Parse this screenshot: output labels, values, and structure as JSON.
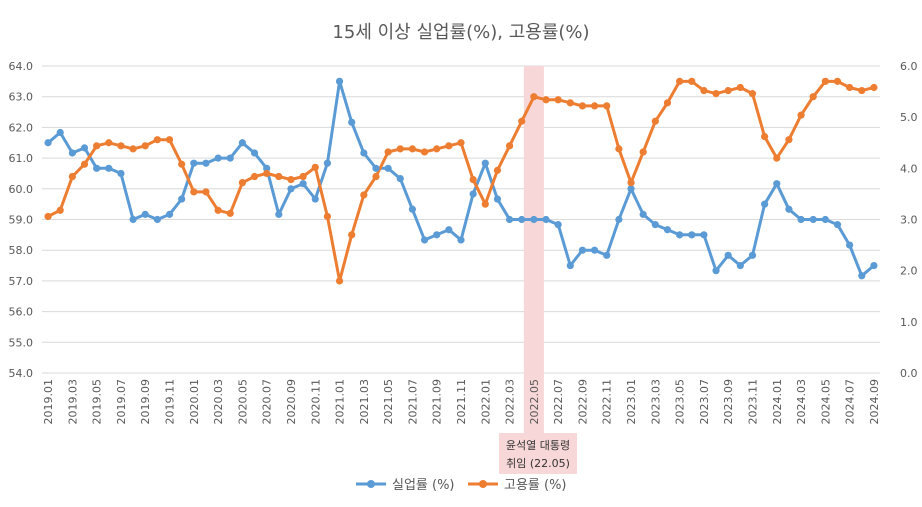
{
  "chart_data": {
    "type": "line",
    "title": "15세 이상 실업률(%), 고용률(%)",
    "categories": [
      "2019.01",
      "2019.02",
      "2019.03",
      "2019.04",
      "2019.05",
      "2019.06",
      "2019.07",
      "2019.08",
      "2019.09",
      "2019.10",
      "2019.11",
      "2019.12",
      "2020.01",
      "2020.02",
      "2020.03",
      "2020.04",
      "2020.05",
      "2020.06",
      "2020.07",
      "2020.08",
      "2020.09",
      "2020.10",
      "2020.11",
      "2020.12",
      "2021.01",
      "2021.02",
      "2021.03",
      "2021.04",
      "2021.05",
      "2021.06",
      "2021.07",
      "2021.08",
      "2021.09",
      "2021.10",
      "2021.11",
      "2021.12",
      "2022.01",
      "2022.02",
      "2022.03",
      "2022.04",
      "2022.05",
      "2022.06",
      "2022.07",
      "2022.08",
      "2022.09",
      "2022.10",
      "2022.11",
      "2022.12",
      "2023.01",
      "2023.02",
      "2023.03",
      "2023.04",
      "2023.05",
      "2023.06",
      "2023.07",
      "2023.08",
      "2023.09",
      "2023.10",
      "2023.11",
      "2023.12",
      "2024.01",
      "2024.02",
      "2024.03",
      "2024.04",
      "2024.05",
      "2024.06",
      "2024.07",
      "2024.08",
      "2024.09"
    ],
    "x_tick_labels": [
      "2019.01",
      "2019.03",
      "2019.05",
      "2019.07",
      "2019.09",
      "2019.11",
      "2020.01",
      "2020.03",
      "2020.05",
      "2020.07",
      "2020.09",
      "2020.11",
      "2021.01",
      "2021.03",
      "2021.05",
      "2021.07",
      "2021.09",
      "2021.11",
      "2022.01",
      "2022.03",
      "2022.05",
      "2022.07",
      "2022.09",
      "2022.11",
      "2023.01",
      "2023.03",
      "2023.05",
      "2023.07",
      "2023.09",
      "2023.11",
      "2024.01",
      "2024.03",
      "2024.05",
      "2024.07",
      "2024.09"
    ],
    "y_left_ticks": [
      "64.0",
      "63.0",
      "62.0",
      "61.0",
      "60.0",
      "59.0",
      "58.0",
      "57.0",
      "56.0",
      "55.0",
      "54.0"
    ],
    "y_right_ticks": [
      "6.0",
      "5.0",
      "4.0",
      "3.0",
      "2.0",
      "1.0",
      "0.0"
    ],
    "ylim_left": [
      54,
      64
    ],
    "ylim_right": [
      0,
      6
    ],
    "series": [
      {
        "name": "실업률 (%)",
        "axis": "right",
        "color": "#5b9bd5",
        "values": [
          4.5,
          4.7,
          4.3,
          4.4,
          4.0,
          4.0,
          3.9,
          3.0,
          3.1,
          3.0,
          3.1,
          3.4,
          4.1,
          4.1,
          4.2,
          4.2,
          4.5,
          4.3,
          4.0,
          3.1,
          3.6,
          3.7,
          3.4,
          4.1,
          5.7,
          4.9,
          4.3,
          4.0,
          4.0,
          3.8,
          3.2,
          2.6,
          2.7,
          2.8,
          2.6,
          3.5,
          4.1,
          3.4,
          3.0,
          3.0,
          3.0,
          3.0,
          2.9,
          2.1,
          2.4,
          2.4,
          2.3,
          3.0,
          3.6,
          3.1,
          2.9,
          2.8,
          2.7,
          2.7,
          2.7,
          2.0,
          2.3,
          2.1,
          2.3,
          3.3,
          3.7,
          3.2,
          3.0,
          3.0,
          3.0,
          2.9,
          2.5,
          1.9,
          2.1
        ]
      },
      {
        "name": "고용률 (%)",
        "axis": "left",
        "color": "#ed7d31",
        "values": [
          59.1,
          59.3,
          60.4,
          60.8,
          61.4,
          61.5,
          61.4,
          61.3,
          61.4,
          61.6,
          61.6,
          60.8,
          59.9,
          59.9,
          59.3,
          59.2,
          60.2,
          60.4,
          60.5,
          60.4,
          60.3,
          60.4,
          60.7,
          59.1,
          57.0,
          58.5,
          59.8,
          60.4,
          61.2,
          61.3,
          61.3,
          61.2,
          61.3,
          61.4,
          61.5,
          60.3,
          59.5,
          60.6,
          61.4,
          62.2,
          63.0,
          62.9,
          62.9,
          62.8,
          62.7,
          62.7,
          62.7,
          61.3,
          60.2,
          61.2,
          62.2,
          62.8,
          63.5,
          63.5,
          63.2,
          63.1,
          63.2,
          63.3,
          63.1,
          61.7,
          61.0,
          61.6,
          62.4,
          63.0,
          63.5,
          63.5,
          63.3,
          63.2,
          63.3
        ]
      }
    ],
    "highlight": {
      "category": "2022.05",
      "color": "#f7d7d7"
    },
    "annotation": {
      "line1": "윤석열 대통령",
      "line2": "취임 (22.05)"
    },
    "legend_position": "bottom",
    "grid": "horizontal"
  }
}
